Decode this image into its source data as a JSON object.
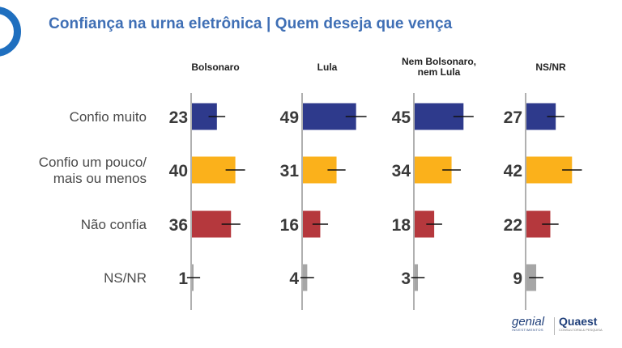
{
  "title": "Confiança na urna eletrônica | Quem deseja que vença",
  "brands": {
    "genial": "genial",
    "genial_sub": "INVESTIMENTOS",
    "quaest": "Quaest",
    "quaest_sub": "CONSULTORIA & PESQUISA"
  },
  "colors": {
    "title": "#3f6fb5",
    "accent": "#1f6fbf",
    "confio_muito": "#2e3a8c",
    "confio_pouco": "#fbb11b",
    "nao_confia": "#b5383d",
    "ns_nr": "#a6a6a6"
  },
  "chart_data": {
    "type": "bar",
    "orientation": "horizontal",
    "layout": "small-multiples",
    "categories": [
      "Confio muito",
      "Confio um pouco/ mais ou menos",
      "Não confia",
      "NS/NR"
    ],
    "category_lines": [
      [
        "Confio muito"
      ],
      [
        "Confio um pouco/",
        "mais ou menos"
      ],
      [
        "Não confia"
      ],
      [
        "NS/NR"
      ]
    ],
    "panels": [
      {
        "name": "Bolsonaro",
        "values": [
          23,
          40,
          36,
          1
        ]
      },
      {
        "name": "Lula",
        "values": [
          49,
          31,
          16,
          4
        ]
      },
      {
        "name": "Nem Bolsonaro, nem Lula",
        "values": [
          45,
          34,
          18,
          3
        ]
      },
      {
        "name": "NS/NR",
        "values": [
          27,
          42,
          22,
          9
        ]
      }
    ],
    "error_bars": true,
    "xlim": [
      0,
      60
    ],
    "grid": false,
    "legend": "none"
  }
}
